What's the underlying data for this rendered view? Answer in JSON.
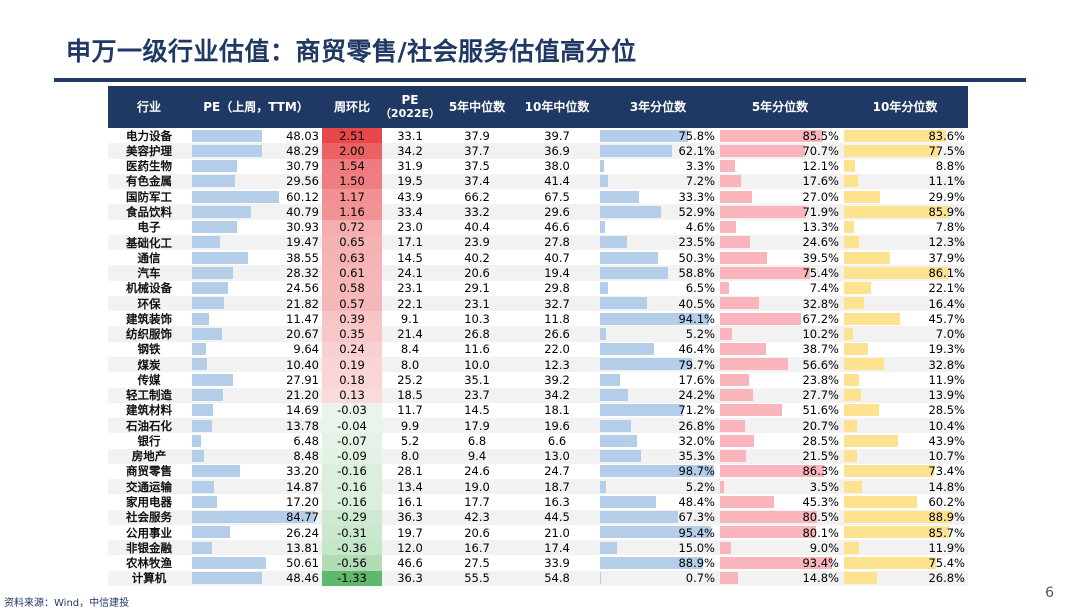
{
  "title": "申万一级行业估值：商贸零售/社会服务估值高分位",
  "headers": {
    "industry": "行业",
    "pe": "PE（上周，TTM）",
    "wow": "周环比",
    "pe2022_line1": "PE",
    "pe2022_line2": "（2022E）",
    "median5": "5年中位数",
    "median10": "10年中位数",
    "pct3": "3年分位数",
    "pct5": "5年分位数",
    "pct10": "10年分位数"
  },
  "rows": [
    {
      "name": "电力设备",
      "pe": "48.03",
      "wow": "2.51",
      "pe22": "33.1",
      "m5": "37.9",
      "m10": "39.7",
      "p3": "75.8%",
      "p5": "85.5%",
      "p10": "83.6%"
    },
    {
      "name": "美容护理",
      "pe": "48.29",
      "wow": "2.00",
      "pe22": "34.2",
      "m5": "37.7",
      "m10": "36.9",
      "p3": "62.1%",
      "p5": "70.7%",
      "p10": "77.5%"
    },
    {
      "name": "医药生物",
      "pe": "30.79",
      "wow": "1.54",
      "pe22": "31.9",
      "m5": "37.5",
      "m10": "38.0",
      "p3": "3.3%",
      "p5": "12.1%",
      "p10": "8.8%"
    },
    {
      "name": "有色金属",
      "pe": "29.56",
      "wow": "1.50",
      "pe22": "19.5",
      "m5": "37.4",
      "m10": "41.4",
      "p3": "7.2%",
      "p5": "17.6%",
      "p10": "11.1%"
    },
    {
      "name": "国防军工",
      "pe": "60.12",
      "wow": "1.17",
      "pe22": "43.9",
      "m5": "66.2",
      "m10": "67.5",
      "p3": "33.3%",
      "p5": "27.0%",
      "p10": "29.9%"
    },
    {
      "name": "食品饮料",
      "pe": "40.79",
      "wow": "1.16",
      "pe22": "33.4",
      "m5": "33.2",
      "m10": "29.6",
      "p3": "52.9%",
      "p5": "71.9%",
      "p10": "85.9%"
    },
    {
      "name": "电子",
      "pe": "30.93",
      "wow": "0.72",
      "pe22": "23.0",
      "m5": "40.4",
      "m10": "46.6",
      "p3": "4.6%",
      "p5": "13.3%",
      "p10": "7.8%"
    },
    {
      "name": "基础化工",
      "pe": "19.47",
      "wow": "0.65",
      "pe22": "17.1",
      "m5": "23.9",
      "m10": "27.8",
      "p3": "23.5%",
      "p5": "24.6%",
      "p10": "12.3%"
    },
    {
      "name": "通信",
      "pe": "38.55",
      "wow": "0.63",
      "pe22": "14.5",
      "m5": "40.2",
      "m10": "40.7",
      "p3": "50.3%",
      "p5": "39.5%",
      "p10": "37.9%"
    },
    {
      "name": "汽车",
      "pe": "28.32",
      "wow": "0.61",
      "pe22": "24.1",
      "m5": "20.6",
      "m10": "19.4",
      "p3": "58.8%",
      "p5": "75.4%",
      "p10": "86.1%"
    },
    {
      "name": "机械设备",
      "pe": "24.56",
      "wow": "0.58",
      "pe22": "23.1",
      "m5": "29.1",
      "m10": "29.8",
      "p3": "6.5%",
      "p5": "7.4%",
      "p10": "22.1%"
    },
    {
      "name": "环保",
      "pe": "21.82",
      "wow": "0.57",
      "pe22": "22.1",
      "m5": "23.1",
      "m10": "32.7",
      "p3": "40.5%",
      "p5": "32.8%",
      "p10": "16.4%"
    },
    {
      "name": "建筑装饰",
      "pe": "11.47",
      "wow": "0.39",
      "pe22": "9.1",
      "m5": "10.3",
      "m10": "11.8",
      "p3": "94.1%",
      "p5": "67.2%",
      "p10": "45.7%"
    },
    {
      "name": "纺织服饰",
      "pe": "20.67",
      "wow": "0.35",
      "pe22": "21.4",
      "m5": "26.8",
      "m10": "26.6",
      "p3": "5.2%",
      "p5": "10.2%",
      "p10": "7.0%"
    },
    {
      "name": "钢铁",
      "pe": "9.64",
      "wow": "0.24",
      "pe22": "8.4",
      "m5": "11.6",
      "m10": "22.0",
      "p3": "46.4%",
      "p5": "38.7%",
      "p10": "19.3%"
    },
    {
      "name": "煤炭",
      "pe": "10.40",
      "wow": "0.19",
      "pe22": "8.0",
      "m5": "10.0",
      "m10": "12.3",
      "p3": "79.7%",
      "p5": "56.6%",
      "p10": "32.8%"
    },
    {
      "name": "传媒",
      "pe": "27.91",
      "wow": "0.18",
      "pe22": "25.2",
      "m5": "35.1",
      "m10": "39.2",
      "p3": "17.6%",
      "p5": "23.8%",
      "p10": "11.9%"
    },
    {
      "name": "轻工制造",
      "pe": "21.20",
      "wow": "0.13",
      "pe22": "18.5",
      "m5": "23.7",
      "m10": "34.2",
      "p3": "24.2%",
      "p5": "27.7%",
      "p10": "13.9%"
    },
    {
      "name": "建筑材料",
      "pe": "14.69",
      "wow": "-0.03",
      "pe22": "11.7",
      "m5": "14.5",
      "m10": "18.1",
      "p3": "71.2%",
      "p5": "51.6%",
      "p10": "28.5%"
    },
    {
      "name": "石油石化",
      "pe": "13.78",
      "wow": "-0.04",
      "pe22": "9.9",
      "m5": "17.9",
      "m10": "19.6",
      "p3": "26.8%",
      "p5": "20.7%",
      "p10": "10.4%"
    },
    {
      "name": "银行",
      "pe": "6.48",
      "wow": "-0.07",
      "pe22": "5.2",
      "m5": "6.8",
      "m10": "6.6",
      "p3": "32.0%",
      "p5": "28.5%",
      "p10": "43.9%"
    },
    {
      "name": "房地产",
      "pe": "8.48",
      "wow": "-0.09",
      "pe22": "8.0",
      "m5": "9.4",
      "m10": "13.0",
      "p3": "35.3%",
      "p5": "21.5%",
      "p10": "10.7%"
    },
    {
      "name": "商贸零售",
      "pe": "33.20",
      "wow": "-0.16",
      "pe22": "28.1",
      "m5": "24.6",
      "m10": "24.7",
      "p3": "98.7%",
      "p5": "86.3%",
      "p10": "73.4%"
    },
    {
      "name": "交通运输",
      "pe": "14.87",
      "wow": "-0.16",
      "pe22": "13.4",
      "m5": "19.0",
      "m10": "18.7",
      "p3": "5.2%",
      "p5": "3.5%",
      "p10": "14.8%"
    },
    {
      "name": "家用电器",
      "pe": "17.20",
      "wow": "-0.16",
      "pe22": "16.1",
      "m5": "17.7",
      "m10": "16.3",
      "p3": "48.4%",
      "p5": "45.3%",
      "p10": "60.2%"
    },
    {
      "name": "社会服务",
      "pe": "84.77",
      "wow": "-0.29",
      "pe22": "36.3",
      "m5": "42.3",
      "m10": "44.5",
      "p3": "67.3%",
      "p5": "80.5%",
      "p10": "88.9%"
    },
    {
      "name": "公用事业",
      "pe": "26.24",
      "wow": "-0.31",
      "pe22": "19.7",
      "m5": "20.6",
      "m10": "21.0",
      "p3": "95.4%",
      "p5": "80.1%",
      "p10": "85.7%"
    },
    {
      "name": "非银金融",
      "pe": "13.81",
      "wow": "-0.36",
      "pe22": "12.0",
      "m5": "16.7",
      "m10": "17.4",
      "p3": "15.0%",
      "p5": "9.0%",
      "p10": "11.9%"
    },
    {
      "name": "农林牧渔",
      "pe": "50.61",
      "wow": "-0.56",
      "pe22": "46.6",
      "m5": "27.5",
      "m10": "33.9",
      "p3": "88.9%",
      "p5": "93.4%",
      "p10": "75.4%"
    },
    {
      "name": "计算机",
      "pe": "48.46",
      "wow": "-1.33",
      "pe22": "36.3",
      "m5": "55.5",
      "m10": "54.8",
      "p3": "0.7%",
      "p5": "14.8%",
      "p10": "26.8%"
    }
  ],
  "colors": {
    "header_bg": "#1f3864",
    "pe_bar": "#b4cde9",
    "pct3_bar": "#b4cde9",
    "pct5_bar": "#f9b4bc",
    "pct10_bar": "#fde28f",
    "wow_positive": "#e8474a",
    "wow_negative": "#5fb86b"
  },
  "footer": "资料来源：Wind，中信建投",
  "page_number": "6"
}
